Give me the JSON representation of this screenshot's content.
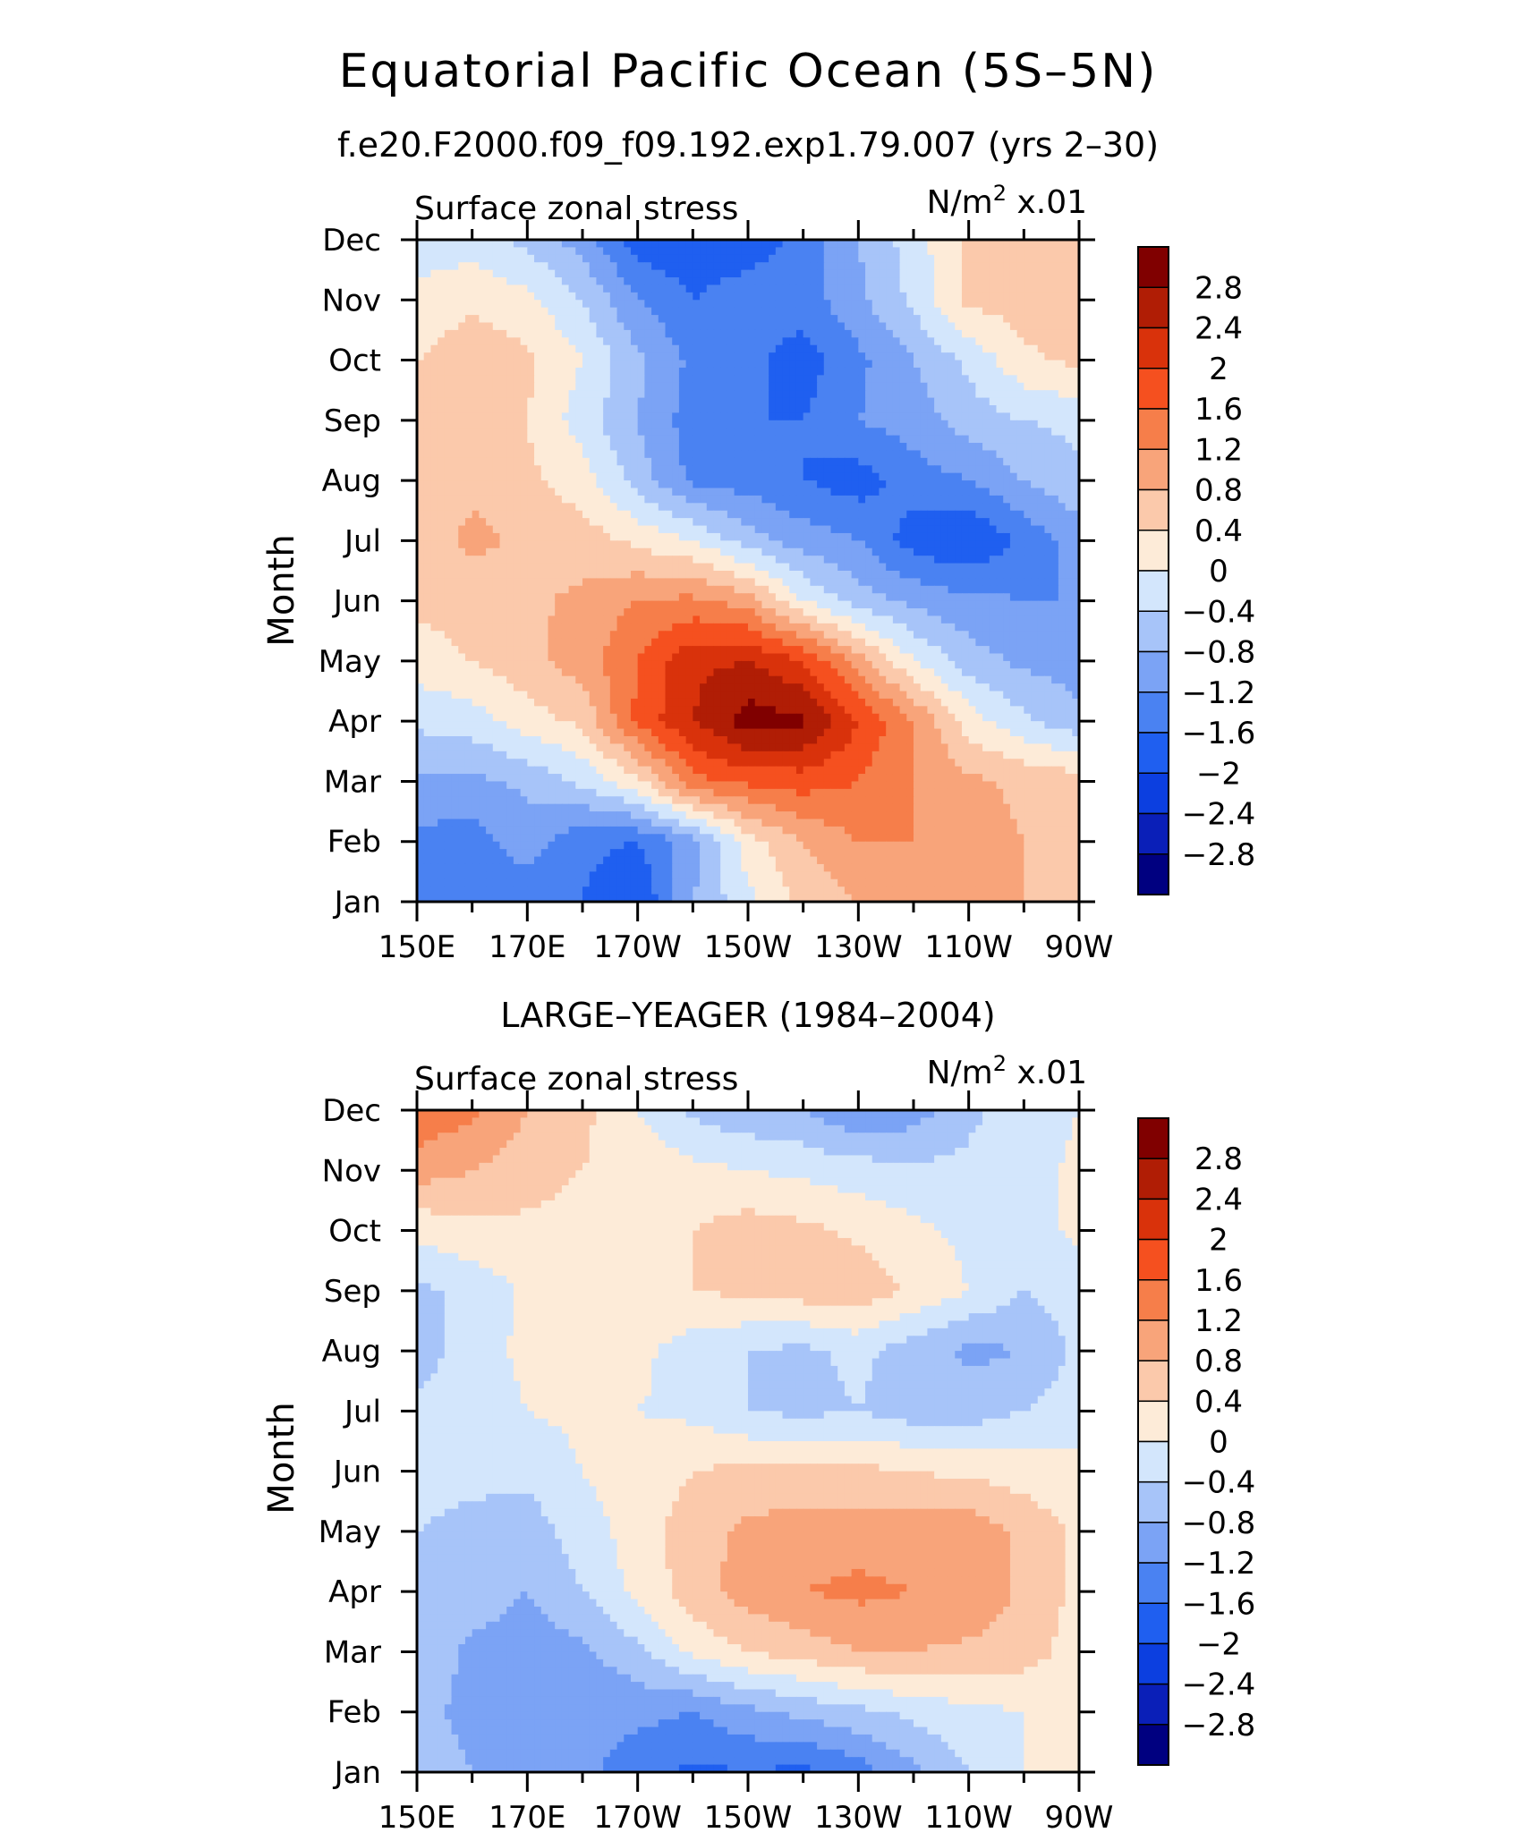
{
  "title": "Equatorial Pacific Ocean (5S–5N)",
  "colors": [
    "#000080",
    "#0a1fb8",
    "#0c3fe0",
    "#1f5ff0",
    "#4a82f2",
    "#7ba3f5",
    "#a7c4f9",
    "#d3e6fc",
    "#fdebd8",
    "#fbc9ab",
    "#f8a47a",
    "#f67e4a",
    "#f5501f",
    "#d9320b",
    "#b01d05",
    "#800000"
  ],
  "chart_data": [
    {
      "type": "heatmap",
      "id": "panel-model",
      "title": "f.e20.F2000.f09_f09.192.exp1.79.007 (yrs 2–30)",
      "left_label": "Surface zonal stress",
      "right_label_unit": "N/m",
      "right_label_exp": "2",
      "right_label_scale": " x.01",
      "ylabel": "Month",
      "x_ticks": [
        "150E",
        "170E",
        "170W",
        "150W",
        "130W",
        "110W",
        "90W"
      ],
      "y_ticks": [
        "Jan",
        "Feb",
        "Mar",
        "Apr",
        "May",
        "Jun",
        "Jul",
        "Aug",
        "Sep",
        "Oct",
        "Nov",
        "Dec"
      ],
      "x_range_deg_east": [
        150,
        270
      ],
      "colorbar_labels": [
        "2.8",
        "2.4",
        "2",
        "1.6",
        "1.2",
        "0.8",
        "0.4",
        "0",
        "−0.4",
        "−0.8",
        "−1.2",
        "−1.6",
        "−2",
        "−2.4",
        "−2.8"
      ],
      "levels": [
        -2.8,
        -2.4,
        -2,
        -1.6,
        -1.2,
        -0.8,
        -0.4,
        0,
        0.4,
        0.8,
        1.2,
        1.6,
        2,
        2.4,
        2.8
      ],
      "lon": [
        150,
        160,
        170,
        180,
        190,
        200,
        210,
        220,
        230,
        240,
        250,
        260,
        270
      ],
      "months": [
        "Jan",
        "Feb",
        "Mar",
        "Apr",
        "May",
        "Jun",
        "Jul",
        "Aug",
        "Sep",
        "Oct",
        "Nov",
        "Dec"
      ],
      "values": [
        [
          -1.5,
          -1.2,
          -1.5,
          -1.6,
          -2.0,
          -0.8,
          -0.1,
          0.5,
          0.8,
          1.0,
          1.2,
          0.8,
          0.6
        ],
        [
          -1.3,
          -1.4,
          -1.0,
          -1.5,
          -1.6,
          -1.0,
          0.2,
          0.8,
          1.2,
          1.2,
          1.0,
          0.8,
          0.6
        ],
        [
          -0.9,
          -0.9,
          -0.7,
          -0.3,
          0.3,
          1.5,
          1.7,
          1.8,
          1.6,
          1.2,
          0.9,
          0.7,
          0.6
        ],
        [
          -0.3,
          -0.2,
          0.2,
          0.5,
          1.7,
          2.4,
          3.0,
          2.9,
          2.0,
          1.2,
          0.2,
          -0.3,
          -0.7
        ],
        [
          0.2,
          0.4,
          0.7,
          1.0,
          1.6,
          2.3,
          2.4,
          2.0,
          1.0,
          0.0,
          -0.6,
          -0.9,
          -1.0
        ],
        [
          0.5,
          0.6,
          0.7,
          0.9,
          1.2,
          1.3,
          1.0,
          0.0,
          -0.6,
          -0.9,
          -1.1,
          -1.2,
          -1.2
        ],
        [
          0.6,
          0.9,
          0.7,
          0.6,
          0.3,
          0.0,
          -0.6,
          -1.0,
          -1.2,
          -1.8,
          -2.0,
          -1.5,
          -1.0
        ],
        [
          0.6,
          0.7,
          0.5,
          0.2,
          -0.6,
          -1.3,
          -1.4,
          -1.6,
          -1.8,
          -1.4,
          -1.2,
          -0.8,
          -0.5
        ],
        [
          0.5,
          0.6,
          0.4,
          -0.2,
          -0.8,
          -1.4,
          -1.6,
          -1.6,
          -1.2,
          -1.0,
          -0.6,
          -0.4,
          -0.3
        ],
        [
          0.4,
          0.7,
          0.5,
          0.0,
          -0.7,
          -1.3,
          -1.5,
          -1.8,
          -1.3,
          -0.8,
          -0.3,
          0.3,
          0.5
        ],
        [
          0.1,
          0.3,
          0.1,
          -0.4,
          -1.2,
          -1.6,
          -1.4,
          -1.4,
          -0.9,
          -0.3,
          0.5,
          0.6,
          0.6
        ],
        [
          -0.2,
          -0.2,
          -0.5,
          -1.0,
          -1.8,
          -1.9,
          -1.8,
          -1.5,
          -0.8,
          -0.2,
          0.5,
          0.6,
          0.6
        ]
      ]
    },
    {
      "type": "heatmap",
      "id": "panel-obs",
      "title": "LARGE–YEAGER (1984–2004)",
      "left_label": "Surface zonal stress",
      "right_label_unit": "N/m",
      "right_label_exp": "2",
      "right_label_scale": " x.01",
      "ylabel": "Month",
      "x_ticks": [
        "150E",
        "170E",
        "170W",
        "150W",
        "130W",
        "110W",
        "90W"
      ],
      "y_ticks": [
        "Jan",
        "Feb",
        "Mar",
        "Apr",
        "May",
        "Jun",
        "Jul",
        "Aug",
        "Sep",
        "Oct",
        "Nov",
        "Dec"
      ],
      "x_range_deg_east": [
        150,
        270
      ],
      "colorbar_labels": [
        "2.8",
        "2.4",
        "2",
        "1.6",
        "1.2",
        "0.8",
        "0.4",
        "0",
        "−0.4",
        "−0.8",
        "−1.2",
        "−1.6",
        "−2",
        "−2.4",
        "−2.8"
      ],
      "levels": [
        -2.8,
        -2.4,
        -2,
        -1.6,
        -1.2,
        -0.8,
        -0.4,
        0,
        0.4,
        0.8,
        1.2,
        1.6,
        2,
        2.4,
        2.8
      ],
      "lon": [
        150,
        160,
        170,
        180,
        190,
        200,
        210,
        220,
        230,
        240,
        250,
        260,
        270
      ],
      "months": [
        "Jan",
        "Feb",
        "Mar",
        "Apr",
        "May",
        "Jun",
        "Jul",
        "Aug",
        "Sep",
        "Oct",
        "Nov",
        "Dec"
      ],
      "values": [
        [
          -0.6,
          -0.8,
          -0.9,
          -1.1,
          -1.4,
          -1.7,
          -1.6,
          -1.7,
          -1.4,
          -0.9,
          -0.4,
          0.0,
          0.2
        ],
        [
          -0.7,
          -0.9,
          -1.0,
          -1.1,
          -1.1,
          -1.2,
          -0.9,
          -0.7,
          -0.5,
          -0.3,
          -0.1,
          0.0,
          0.1
        ],
        [
          -0.5,
          -0.9,
          -1.0,
          -0.9,
          -0.5,
          0.1,
          0.4,
          0.6,
          0.8,
          0.8,
          0.7,
          0.6,
          0.2
        ],
        [
          -0.4,
          -0.6,
          -0.8,
          -0.4,
          0.1,
          0.6,
          1.0,
          1.2,
          1.3,
          1.2,
          1.2,
          0.7,
          0.3
        ],
        [
          -0.4,
          -0.5,
          -0.6,
          -0.2,
          0.2,
          0.6,
          0.9,
          1.0,
          1.0,
          1.0,
          1.1,
          0.7,
          0.3
        ],
        [
          -0.3,
          -0.3,
          -0.3,
          0.0,
          0.2,
          0.4,
          0.5,
          0.5,
          0.5,
          0.4,
          0.3,
          0.2,
          0.1
        ],
        [
          -0.3,
          -0.2,
          0.0,
          0.1,
          0.0,
          -0.1,
          -0.4,
          -0.5,
          -0.4,
          -0.6,
          -0.6,
          -0.4,
          -0.2
        ],
        [
          -0.6,
          -0.2,
          0.1,
          0.1,
          0.1,
          -0.2,
          -0.4,
          -0.5,
          -0.3,
          -0.6,
          -0.9,
          -0.8,
          -0.3
        ],
        [
          -0.5,
          -0.3,
          0.1,
          0.1,
          0.2,
          0.4,
          0.5,
          0.6,
          0.7,
          0.3,
          0.0,
          -0.4,
          -0.2
        ],
        [
          0.1,
          0.3,
          0.3,
          0.2,
          0.2,
          0.4,
          0.6,
          0.5,
          0.3,
          0.1,
          -0.1,
          -0.2,
          0.1
        ],
        [
          1.0,
          0.8,
          0.6,
          0.4,
          0.3,
          0.1,
          0.0,
          -0.1,
          -0.2,
          -0.3,
          -0.3,
          -0.2,
          0.1
        ],
        [
          1.5,
          1.3,
          0.8,
          0.5,
          0.0,
          -0.5,
          -0.7,
          -0.8,
          -1.2,
          -1.0,
          -0.5,
          -0.2,
          0.0
        ]
      ]
    }
  ]
}
